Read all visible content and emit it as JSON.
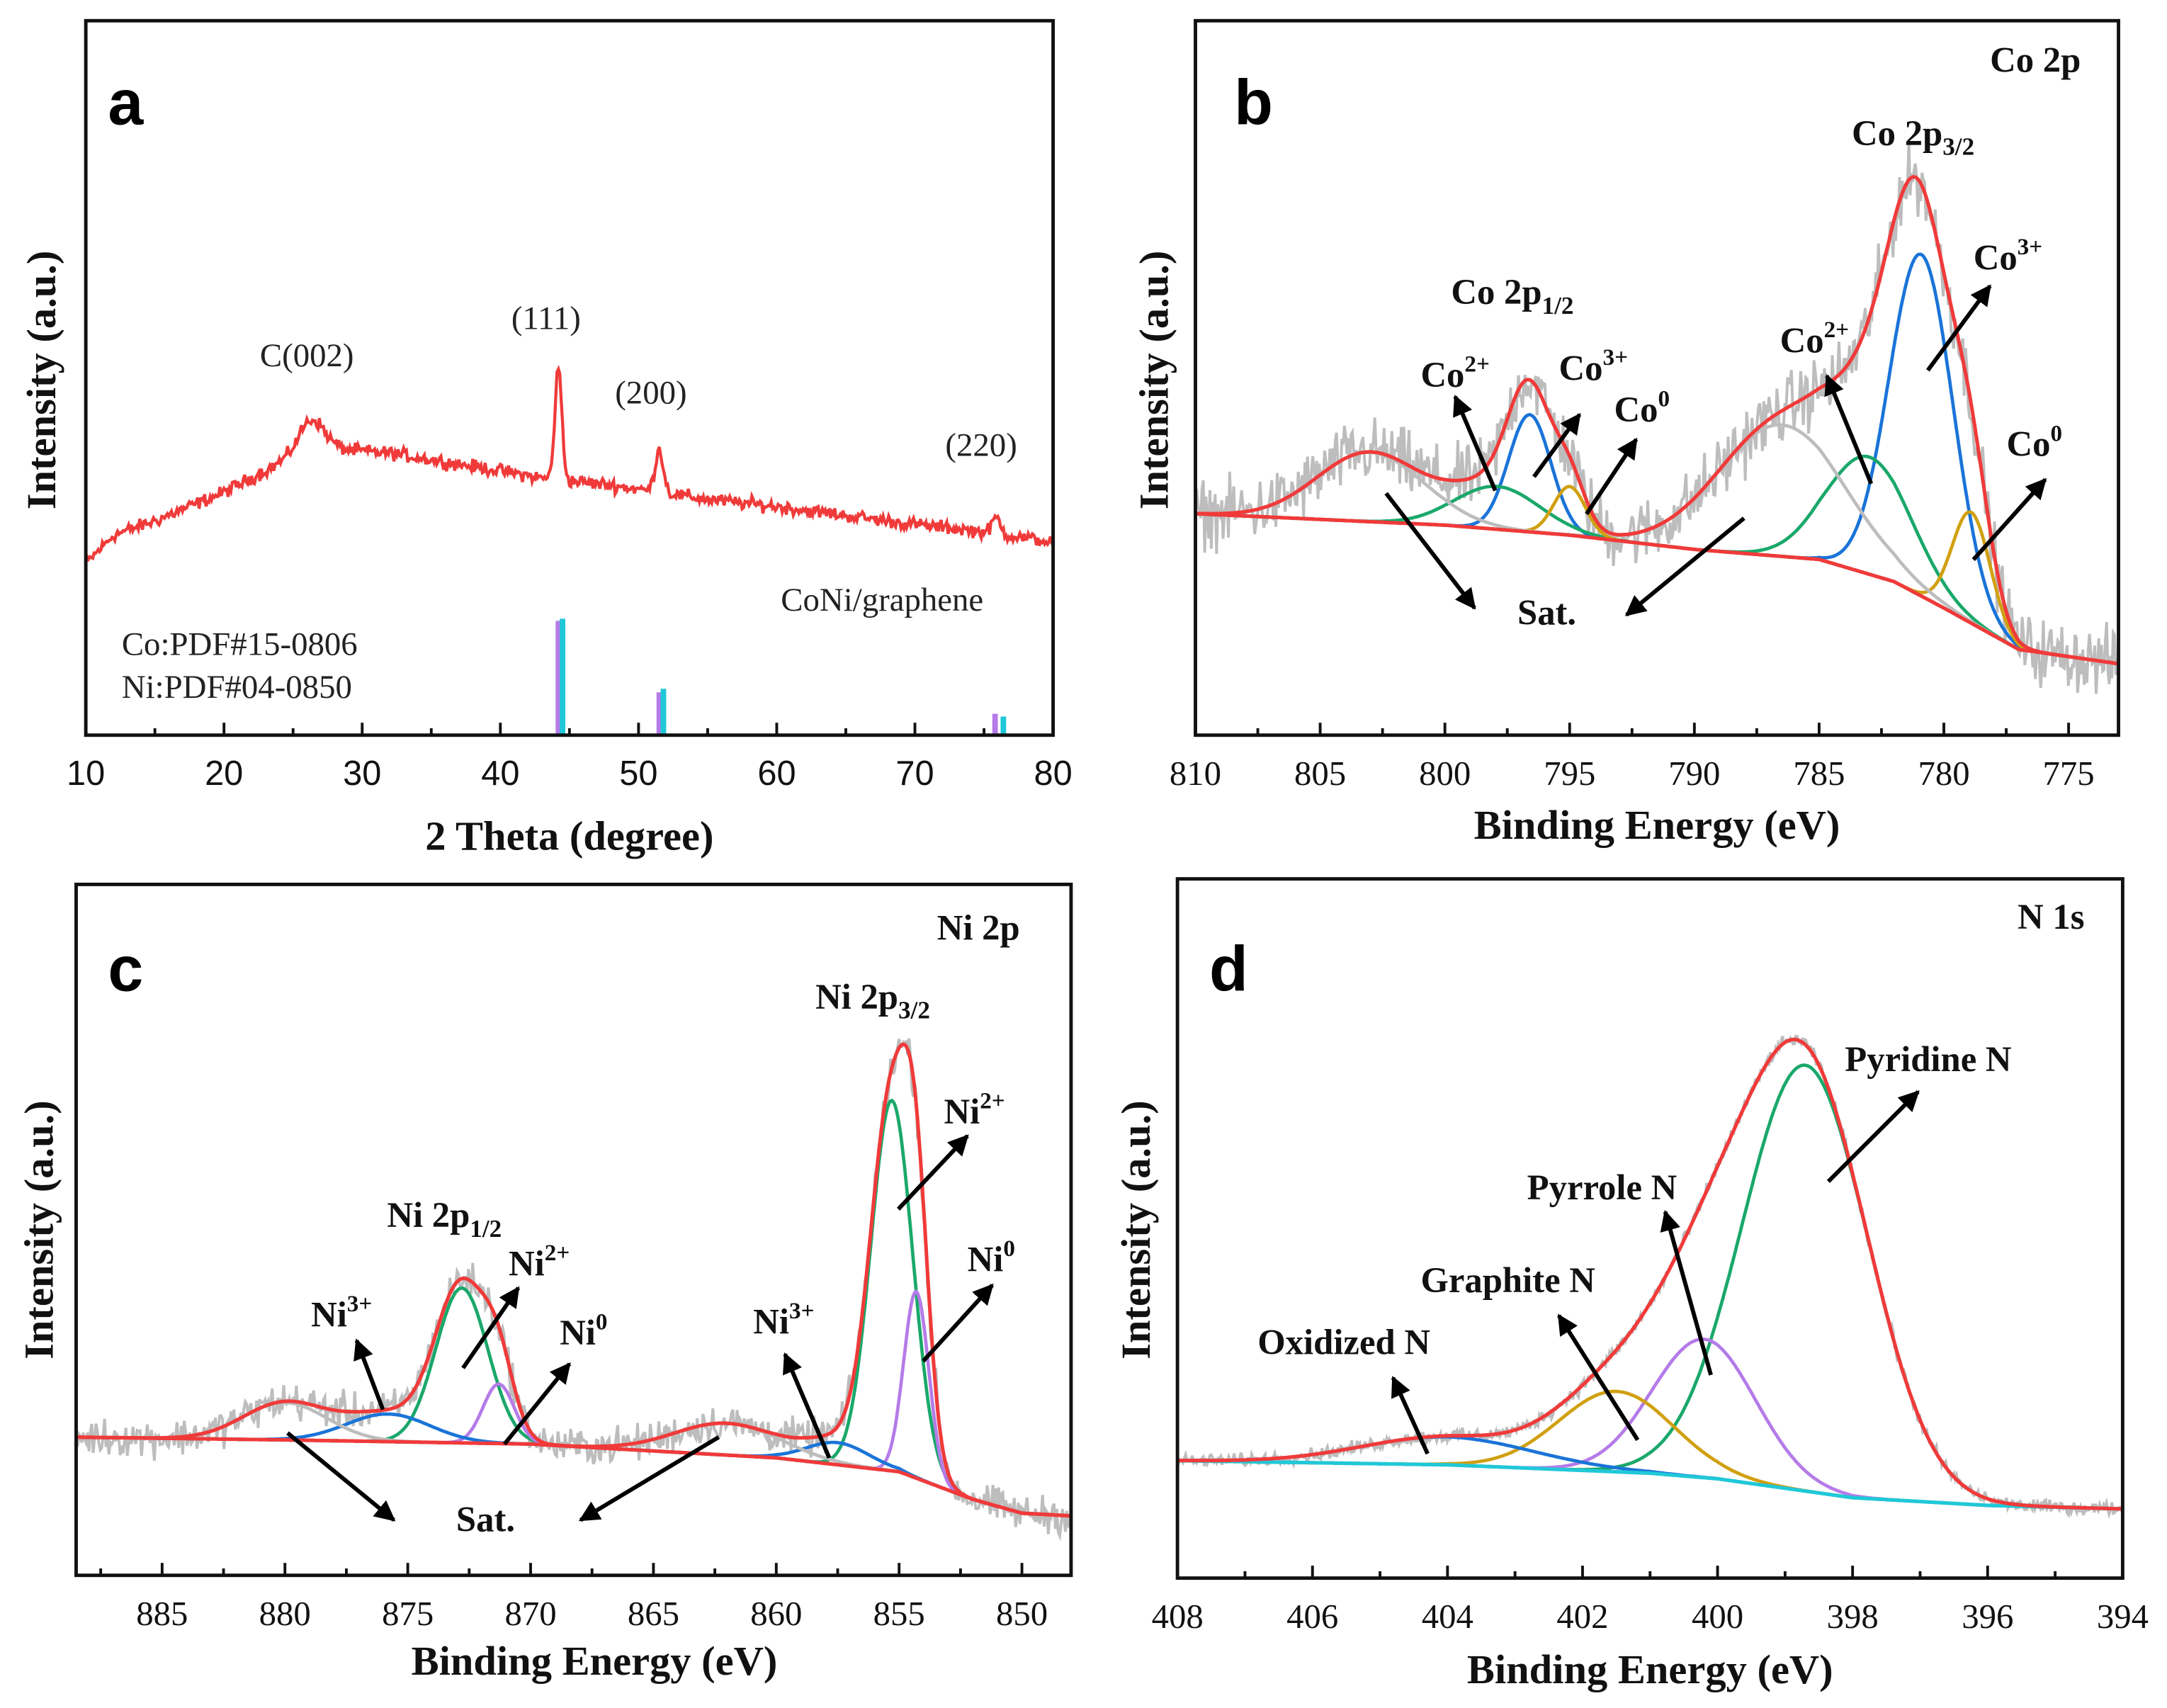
{
  "chart_data": [
    {
      "type": "line",
      "panel": "a",
      "title": "",
      "xlabel": "2 Theta (degree)",
      "ylabel": "Intensity (a.u.)",
      "xlim": [
        10,
        80
      ],
      "ylim": [
        0,
        100
      ],
      "xticks": [
        "10",
        "20",
        "30",
        "40",
        "50",
        "60",
        "70",
        "80"
      ],
      "series_label": "CoNi/graphene",
      "baseline": [
        [
          10,
          24
        ],
        [
          12,
          28
        ],
        [
          15,
          30
        ],
        [
          20,
          34
        ],
        [
          24,
          38
        ],
        [
          28,
          40
        ],
        [
          32,
          39.5
        ],
        [
          40,
          37
        ],
        [
          43,
          36
        ],
        [
          48,
          35
        ],
        [
          55,
          33
        ],
        [
          60,
          32
        ],
        [
          70,
          29.5
        ],
        [
          75,
          28.5
        ],
        [
          80,
          27
        ]
      ],
      "peaks": [
        {
          "center": 26.3,
          "height": 5,
          "fwhm": 2.2
        },
        {
          "center": 44.2,
          "height": 15.5,
          "fwhm": 0.6
        },
        {
          "center": 51.5,
          "height": 6,
          "fwhm": 0.7
        },
        {
          "center": 75.9,
          "height": 2.2,
          "fwhm": 0.7
        }
      ],
      "peak_labels": [
        "C(002)",
        "(111)",
        "(200)",
        "(220)"
      ],
      "references": [
        {
          "name": "Co:PDF#15-0806",
          "color": "#b57be8",
          "sticks": [
            [
              44.2,
              16
            ],
            [
              51.5,
              6
            ],
            [
              75.8,
              3
            ]
          ]
        },
        {
          "name": "Ni:PDF#04-0850",
          "color": "#1ec8d8",
          "sticks": [
            [
              44.5,
              16.3
            ],
            [
              51.8,
              6.5
            ],
            [
              76.4,
              2.6
            ]
          ]
        }
      ],
      "color": "#f03a3a"
    },
    {
      "type": "line",
      "panel": "b",
      "title": "Co 2p",
      "xlabel": "Binding Energy (eV)",
      "ylabel": "Intensity (a.u.)",
      "xlim": [
        810,
        773
      ],
      "ylim": [
        0,
        100
      ],
      "xticks": [
        "810",
        "805",
        "800",
        "795",
        "790",
        "785",
        "780",
        "775"
      ],
      "background": [
        [
          810,
          31
        ],
        [
          800,
          29.4
        ],
        [
          795,
          28
        ],
        [
          790,
          26
        ],
        [
          785,
          24.6
        ],
        [
          782,
          21.5
        ],
        [
          780,
          17.8
        ],
        [
          777,
          12
        ],
        [
          773,
          10
        ]
      ],
      "components": [
        {
          "name": "Co3+",
          "color": "#1a74d8",
          "center": 780.9,
          "height": 47.8,
          "fwhm": 3.0
        },
        {
          "name": "Co2+",
          "color": "#1aa86a",
          "center": 783.0,
          "height": 16.4,
          "fwhm": 4.0
        },
        {
          "name": "Co0",
          "color": "#d0a010",
          "center": 778.9,
          "height": 15.5,
          "fwhm": 1.8
        },
        {
          "name": "Sat.",
          "color": "#bdbdbd",
          "center": 786.5,
          "height": 18.4,
          "fwhm": 6.0
        },
        {
          "name": "Co3+",
          "color": "#1a74d8",
          "center": 796.6,
          "height": 16.4,
          "fwhm": 2.0
        },
        {
          "name": "Co2+",
          "color": "#1aa86a",
          "center": 797.9,
          "height": 6.0,
          "fwhm": 4.0
        },
        {
          "name": "Co0",
          "color": "#d0a010",
          "center": 795.0,
          "height": 6.8,
          "fwhm": 1.5
        },
        {
          "name": "Sat.",
          "color": "#bdbdbd",
          "center": 803.0,
          "height": 9.7,
          "fwhm": 5.0
        }
      ],
      "envelope_color": "#f03a3a",
      "raw_color": "#bdbdbd",
      "annotations": {
        "group_left": {
          "base": "Co 2p",
          "sub": "1/2"
        },
        "group_right": {
          "base": "Co 2p",
          "sub": "3/2"
        },
        "l_co2": {
          "base": "Co",
          "sup": "2+"
        },
        "l_co3": {
          "base": "Co",
          "sup": "3+"
        },
        "l_co0": {
          "base": "Co",
          "sup": "0"
        },
        "r_co2": {
          "base": "Co",
          "sup": "2+"
        },
        "r_co3": {
          "base": "Co",
          "sup": "3+"
        },
        "r_co0": {
          "base": "Co",
          "sup": "0"
        },
        "sat": "Sat."
      }
    },
    {
      "type": "line",
      "panel": "c",
      "title": "Ni 2p",
      "xlabel": "Binding Energy (eV)",
      "ylabel": "Intensity (a.u.)",
      "xlim": [
        888.5,
        848
      ],
      "ylim": [
        0,
        100
      ],
      "xticks": [
        "885",
        "880",
        "875",
        "870",
        "865",
        "860",
        "855",
        "850"
      ],
      "background": [
        [
          888.5,
          20
        ],
        [
          880,
          19.6
        ],
        [
          870,
          19
        ],
        [
          860,
          17
        ],
        [
          855,
          15
        ],
        [
          852,
          11
        ],
        [
          850,
          9
        ],
        [
          848,
          8.6
        ]
      ],
      "components": [
        {
          "name": "Ni2+",
          "color": "#1aa86a",
          "center": 855.3,
          "height": 53.6,
          "fwhm": 2.0
        },
        {
          "name": "Ni0",
          "color": "#b57be8",
          "center": 854.3,
          "height": 27,
          "fwhm": 1.2
        },
        {
          "name": "Ni3+",
          "color": "#1a74d8",
          "center": 857.5,
          "height": 3.2,
          "fwhm": 3.0
        },
        {
          "name": "Sat.",
          "color": "#bdbdbd",
          "center": 862.0,
          "height": 4.6,
          "fwhm": 5.0
        },
        {
          "name": "Ni2+",
          "color": "#1aa86a",
          "center": 872.8,
          "height": 22.4,
          "fwhm": 2.5
        },
        {
          "name": "Ni0",
          "color": "#b57be8",
          "center": 871.3,
          "height": 8.6,
          "fwhm": 1.5
        },
        {
          "name": "Ni3+",
          "color": "#1a74d8",
          "center": 875.8,
          "height": 4,
          "fwhm": 4.0
        },
        {
          "name": "Sat.",
          "color": "#bdbdbd",
          "center": 880.0,
          "height": 5.4,
          "fwhm": 4.0
        }
      ],
      "envelope_color": "#f03a3a",
      "raw_color": "#bdbdbd",
      "annotations": {
        "group_left": {
          "base": "Ni 2p",
          "sub": "1/2"
        },
        "group_right": {
          "base": "Ni 2p",
          "sub": "3/2"
        },
        "l_ni3": {
          "base": "Ni",
          "sup": "3+"
        },
        "l_ni2": {
          "base": "Ni",
          "sup": "2+"
        },
        "l_ni0": {
          "base": "Ni",
          "sup": "0"
        },
        "r_ni3": {
          "base": "Ni",
          "sup": "3+"
        },
        "r_ni2": {
          "base": "Ni",
          "sup": "2+"
        },
        "r_ni0": {
          "base": "Ni",
          "sup": "0"
        },
        "sat": "Sat."
      }
    },
    {
      "type": "line",
      "panel": "d",
      "title": "N 1s",
      "xlabel": "Binding Energy (eV)",
      "ylabel": "Intensity (a.u.)",
      "xlim": [
        408,
        394
      ],
      "ylim": [
        0,
        100
      ],
      "xticks": [
        "408",
        "406",
        "404",
        "402",
        "400",
        "398",
        "396",
        "394"
      ],
      "background": [
        [
          408,
          16.8
        ],
        [
          404,
          16.2
        ],
        [
          401,
          15
        ],
        [
          400,
          14.2
        ],
        [
          398,
          11.5
        ],
        [
          396,
          10.4
        ],
        [
          394,
          9.9
        ]
      ],
      "components": [
        {
          "name": "Pyridine N",
          "color": "#1aa86a",
          "center": 398.7,
          "height": 60.9,
          "fwhm": 2.2
        },
        {
          "name": "Pyrrole N",
          "color": "#b57be8",
          "center": 400.2,
          "height": 19.8,
          "fwhm": 1.8
        },
        {
          "name": "Graphite N",
          "color": "#d0a010",
          "center": 401.5,
          "height": 11.5,
          "fwhm": 2.0
        },
        {
          "name": "Oxidized N",
          "color": "#1a74d8",
          "center": 404.0,
          "height": 4,
          "fwhm": 3.0
        }
      ],
      "envelope_color": "#f03a3a",
      "raw_color": "#bdbdbd",
      "background_color": "#20c8d8",
      "annotations": {
        "pyridine": "Pyridine N",
        "pyrrole": "Pyrrole N",
        "graphite": "Graphite N",
        "oxidized": "Oxidized N"
      }
    }
  ],
  "panel_letters": [
    "a",
    "b",
    "c",
    "d"
  ]
}
